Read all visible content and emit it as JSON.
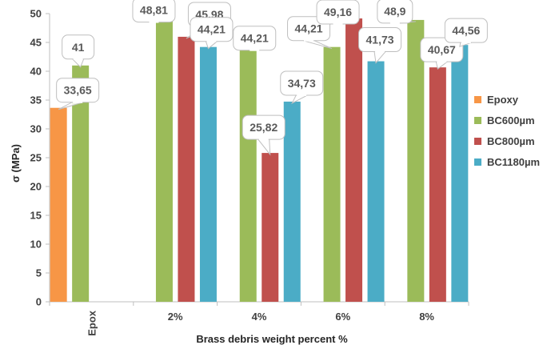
{
  "chart_data": {
    "type": "bar",
    "categories": [
      "Epox",
      "2%",
      "4%",
      "6%",
      "8%"
    ],
    "series": [
      {
        "name": "Epoxy",
        "color": "#F79646",
        "values": [
          33.65,
          null,
          null,
          null,
          null
        ]
      },
      {
        "name": "BC600µm",
        "color": "#9BBB59",
        "values": [
          41,
          48.81,
          44.21,
          44.21,
          48.9
        ]
      },
      {
        "name": "BC800µm",
        "color": "#C0504D",
        "values": [
          null,
          45.98,
          25.82,
          49.16,
          40.67
        ]
      },
      {
        "name": "BC1180µm",
        "color": "#4BACC6",
        "values": [
          null,
          44.21,
          34.73,
          41.73,
          44.56
        ]
      }
    ],
    "data_labels": [
      [
        "33,65",
        null,
        null,
        null,
        null
      ],
      [
        "41",
        "48,81",
        "44,21",
        "44,21",
        "48,9"
      ],
      [
        null,
        "45,98",
        "25,82",
        "49,16",
        "40,67"
      ],
      [
        null,
        "44,21",
        "34,73",
        "41,73",
        "44,56"
      ]
    ],
    "yticks": [
      "0",
      "5",
      "10",
      "15",
      "20",
      "25",
      "30",
      "35",
      "40",
      "45",
      "50"
    ],
    "ylim": [
      0,
      50
    ],
    "xlabel": "Brass debris weight percent %",
    "ylabel": "σ (MPa)",
    "legend_position": "right",
    "grid": false
  }
}
